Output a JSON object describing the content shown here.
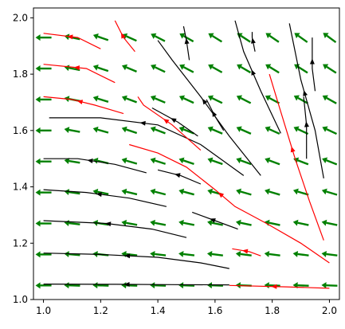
{
  "chart_data": {
    "type": "quiver-streamplot",
    "title": "",
    "xlabel": "",
    "ylabel": "",
    "xlim": [
      0.965,
      2.035
    ],
    "ylim": [
      1.0,
      2.035
    ],
    "grid": false,
    "legend": "none",
    "x_ticks": [
      {
        "value": 1.0,
        "label": "1.0"
      },
      {
        "value": 1.2,
        "label": "1.2"
      },
      {
        "value": 1.4,
        "label": "1.4"
      },
      {
        "value": 1.6,
        "label": "1.6"
      },
      {
        "value": 1.8,
        "label": "1.8"
      },
      {
        "value": 2.0,
        "label": "2.0"
      }
    ],
    "y_ticks": [
      {
        "value": 1.0,
        "label": "1.0"
      },
      {
        "value": 1.2,
        "label": "1.2"
      },
      {
        "value": 1.4,
        "label": "1.4"
      },
      {
        "value": 1.6,
        "label": "1.6"
      },
      {
        "value": 1.8,
        "label": "1.8"
      },
      {
        "value": 2.0,
        "label": "2.0"
      }
    ],
    "quiver": {
      "color": "#008000",
      "grid_x": [
        1.0,
        1.1,
        1.2,
        1.3,
        1.4,
        1.5,
        1.6,
        1.7,
        1.8,
        1.9,
        2.0
      ],
      "grid_y": [
        1.05,
        1.16,
        1.27,
        1.38,
        1.49,
        1.6,
        1.71,
        1.82,
        1.93
      ],
      "vector_field": "u = -(x - 1.0) - 0.3*(y - 1.0)*(2.0 - x), v = 0.8*(x - 1.0)*(y - 1.0)",
      "note_values_estimated": true
    },
    "streamlines": [
      {
        "color": "#000000",
        "points": [
          [
            1.65,
            1.052
          ],
          [
            1.45,
            1.053
          ],
          [
            1.25,
            1.054
          ],
          [
            1.0,
            1.055
          ]
        ]
      },
      {
        "color": "#ff0000",
        "points": [
          [
            2.0,
            1.04
          ],
          [
            1.85,
            1.045
          ],
          [
            1.65,
            1.05
          ]
        ]
      },
      {
        "color": "#000000",
        "points": [
          [
            1.65,
            1.11
          ],
          [
            1.55,
            1.13
          ],
          [
            1.4,
            1.15
          ],
          [
            1.2,
            1.16
          ],
          [
            1.0,
            1.165
          ]
        ]
      },
      {
        "color": "#ff0000",
        "points": [
          [
            1.76,
            1.155
          ],
          [
            1.72,
            1.17
          ],
          [
            1.66,
            1.18
          ]
        ]
      },
      {
        "color": "#000000",
        "points": [
          [
            1.5,
            1.22
          ],
          [
            1.38,
            1.25
          ],
          [
            1.22,
            1.27
          ],
          [
            1.0,
            1.28
          ]
        ]
      },
      {
        "color": "#000000",
        "points": [
          [
            1.68,
            1.25
          ],
          [
            1.6,
            1.28
          ],
          [
            1.52,
            1.31
          ]
        ]
      },
      {
        "color": "#000000",
        "points": [
          [
            1.43,
            1.33
          ],
          [
            1.3,
            1.36
          ],
          [
            1.15,
            1.38
          ],
          [
            1.0,
            1.39
          ]
        ]
      },
      {
        "color": "#000000",
        "points": [
          [
            1.55,
            1.41
          ],
          [
            1.48,
            1.44
          ],
          [
            1.4,
            1.46
          ]
        ]
      },
      {
        "color": "#000000",
        "points": [
          [
            1.36,
            1.45
          ],
          [
            1.25,
            1.48
          ],
          [
            1.12,
            1.5
          ],
          [
            1.0,
            1.5
          ]
        ]
      },
      {
        "color": "#000000",
        "points": [
          [
            1.7,
            1.44
          ],
          [
            1.55,
            1.55
          ],
          [
            1.4,
            1.62
          ],
          [
            1.2,
            1.645
          ],
          [
            1.02,
            1.645
          ]
        ]
      },
      {
        "color": "#000000",
        "points": [
          [
            1.54,
            1.58
          ],
          [
            1.47,
            1.63
          ],
          [
            1.38,
            1.68
          ]
        ]
      },
      {
        "color": "#ff0000",
        "points": [
          [
            1.28,
            1.66
          ],
          [
            1.18,
            1.69
          ],
          [
            1.1,
            1.71
          ],
          [
            1.0,
            1.72
          ]
        ]
      },
      {
        "color": "#ff0000",
        "points": [
          [
            1.25,
            1.77
          ],
          [
            1.15,
            1.82
          ],
          [
            1.0,
            1.835
          ]
        ]
      },
      {
        "color": "#ff0000",
        "points": [
          [
            1.2,
            1.89
          ],
          [
            1.12,
            1.93
          ],
          [
            1.0,
            1.945
          ]
        ]
      },
      {
        "color": "#ff0000",
        "points": [
          [
            1.32,
            1.88
          ],
          [
            1.28,
            1.93
          ],
          [
            1.25,
            1.99
          ]
        ]
      },
      {
        "color": "#ff0000",
        "points": [
          [
            1.55,
            1.53
          ],
          [
            1.45,
            1.62
          ],
          [
            1.35,
            1.69
          ],
          [
            1.33,
            1.72
          ]
        ]
      },
      {
        "color": "#000000",
        "points": [
          [
            1.76,
            1.44
          ],
          [
            1.65,
            1.58
          ],
          [
            1.55,
            1.72
          ],
          [
            1.45,
            1.85
          ],
          [
            1.4,
            1.92
          ]
        ]
      },
      {
        "color": "#000000",
        "points": [
          [
            1.63,
            1.6
          ],
          [
            1.6,
            1.65
          ],
          [
            1.57,
            1.71
          ]
        ]
      },
      {
        "color": "#000000",
        "points": [
          [
            1.51,
            1.85
          ],
          [
            1.5,
            1.92
          ],
          [
            1.49,
            1.97
          ]
        ]
      },
      {
        "color": "#000000",
        "points": [
          [
            1.83,
            1.59
          ],
          [
            1.76,
            1.74
          ],
          [
            1.7,
            1.88
          ],
          [
            1.67,
            1.99
          ]
        ]
      },
      {
        "color": "#000000",
        "points": [
          [
            1.74,
            1.88
          ],
          [
            1.73,
            1.93
          ],
          [
            1.73,
            1.95
          ]
        ]
      },
      {
        "color": "#000000",
        "points": [
          [
            1.98,
            1.43
          ],
          [
            1.95,
            1.6
          ],
          [
            1.9,
            1.78
          ],
          [
            1.86,
            1.98
          ]
        ]
      },
      {
        "color": "#000000",
        "points": [
          [
            1.92,
            1.5
          ],
          [
            1.92,
            1.62
          ],
          [
            1.91,
            1.72
          ]
        ]
      },
      {
        "color": "#000000",
        "points": [
          [
            1.95,
            1.74
          ],
          [
            1.94,
            1.82
          ],
          [
            1.94,
            1.93
          ]
        ]
      },
      {
        "color": "#ff0000",
        "points": [
          [
            1.98,
            1.21
          ],
          [
            1.93,
            1.35
          ],
          [
            1.88,
            1.5
          ],
          [
            1.85,
            1.6
          ],
          [
            1.82,
            1.7
          ],
          [
            1.79,
            1.8
          ]
        ]
      },
      {
        "color": "#ff0000",
        "points": [
          [
            2.0,
            1.13
          ],
          [
            1.9,
            1.2
          ],
          [
            1.78,
            1.27
          ],
          [
            1.67,
            1.33
          ],
          [
            1.6,
            1.39
          ],
          [
            1.5,
            1.47
          ],
          [
            1.4,
            1.52
          ],
          [
            1.3,
            1.55
          ]
        ]
      }
    ]
  }
}
